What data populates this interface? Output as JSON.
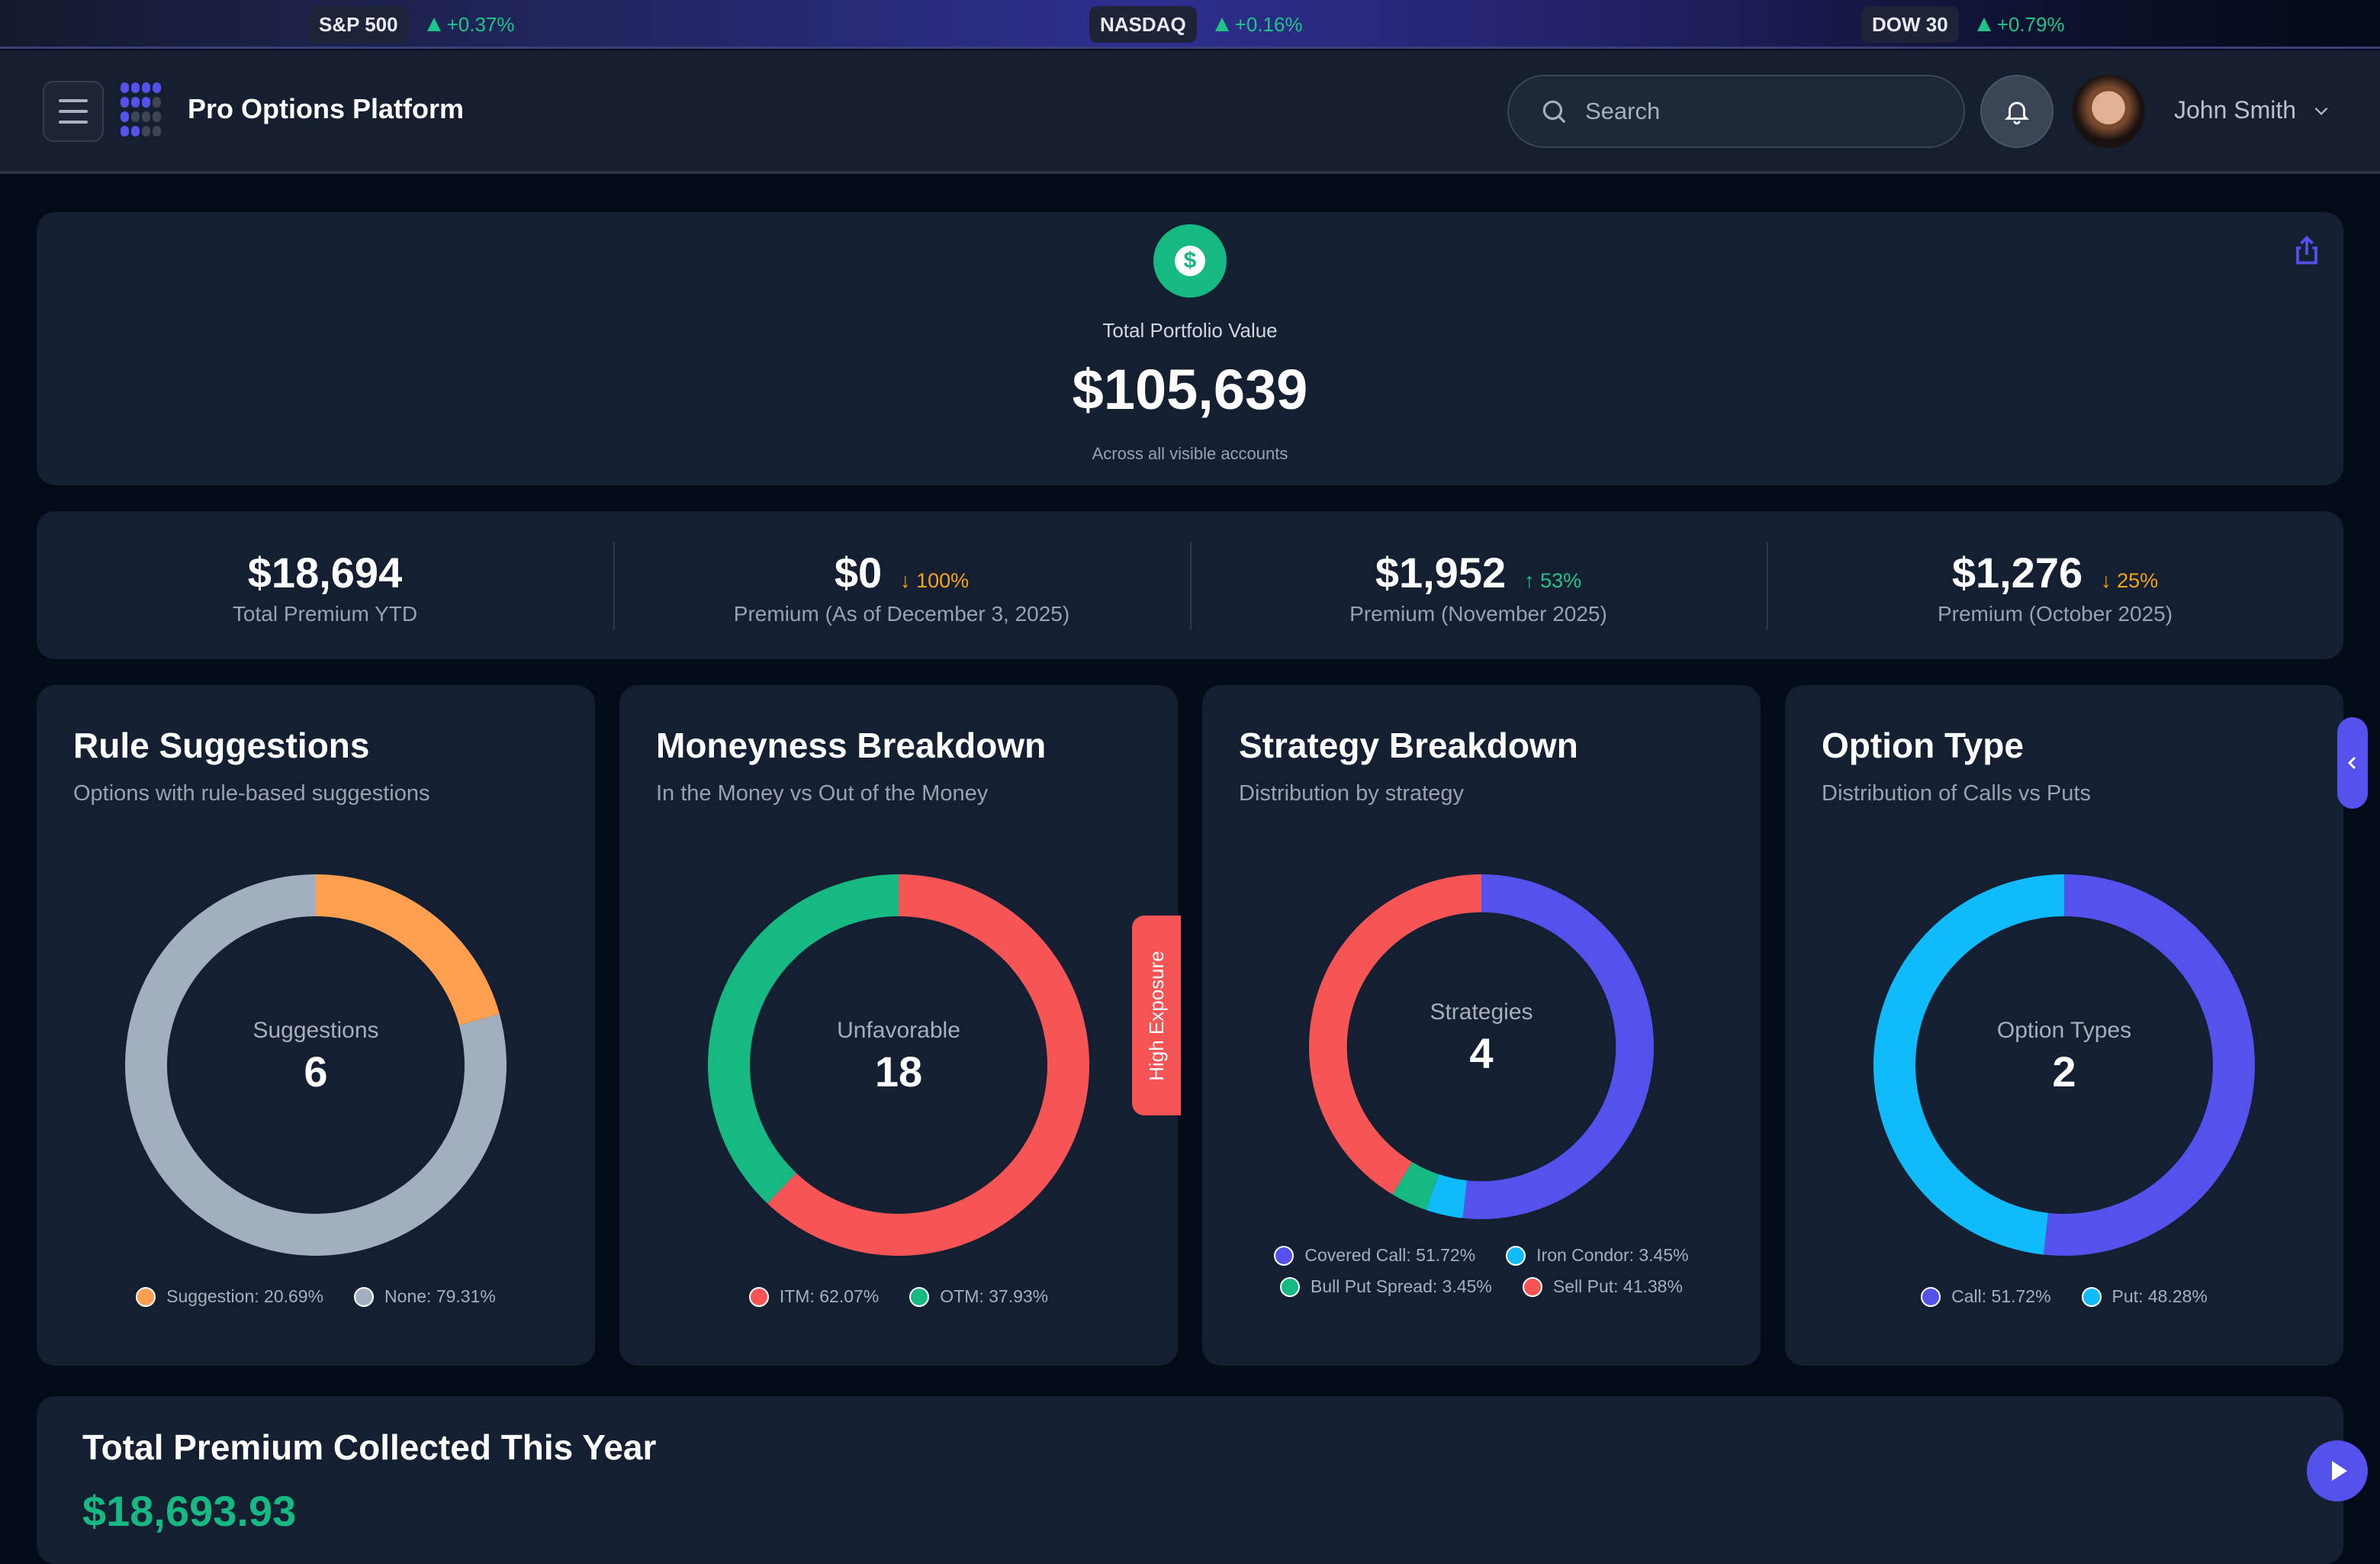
{
  "ticker": [
    {
      "symbol": "S&P 500",
      "change": "+0.37%",
      "direction": "up"
    },
    {
      "symbol": "NASDAQ",
      "change": "+0.16%",
      "direction": "up"
    },
    {
      "symbol": "DOW 30",
      "change": "+0.79%",
      "direction": "up"
    }
  ],
  "header": {
    "app_title": "Pro Options Platform",
    "search_placeholder": "Search",
    "user_name": "John Smith",
    "icons": {
      "menu": "hamburger-icon",
      "search": "search-icon",
      "notifications": "bell-icon",
      "user_menu": "chevron-down-icon"
    }
  },
  "portfolio": {
    "label": "Total Portfolio Value",
    "value": "$105,639",
    "subtitle": "Across all visible accounts",
    "icons": {
      "badge": "dollar-icon",
      "share": "share-icon"
    }
  },
  "stats": [
    {
      "value": "$18,694",
      "delta": "",
      "direction": "",
      "label": "Total Premium YTD"
    },
    {
      "value": "$0",
      "delta": "↓ 100%",
      "direction": "down",
      "label": "Premium (As of December 3, 2025)"
    },
    {
      "value": "$1,952",
      "delta": "↑ 53%",
      "direction": "up",
      "label": "Premium (November 2025)"
    },
    {
      "value": "$1,276",
      "delta": "↓ 25%",
      "direction": "down",
      "label": "Premium (October 2025)"
    }
  ],
  "cards": [
    {
      "title": "Rule Suggestions",
      "subtitle": "Options with rule-based suggestions",
      "center_label": "Suggestions",
      "center_value": "6",
      "legend": [
        "Suggestion: 20.69%",
        "None: 79.31%"
      ]
    },
    {
      "title": "Moneyness Breakdown",
      "subtitle": "In the Money vs Out of the Money",
      "center_label": "Unfavorable",
      "center_value": "18",
      "legend": [
        "ITM: 62.07%",
        "OTM: 37.93%"
      ]
    },
    {
      "title": "Strategy Breakdown",
      "subtitle": "Distribution by strategy",
      "center_label": "Strategies",
      "center_value": "4",
      "legend": [
        "Covered Call: 51.72%",
        "Iron Condor: 3.45%",
        "Bull Put Spread: 3.45%",
        "Sell Put: 41.38%"
      ]
    },
    {
      "title": "Option Type",
      "subtitle": "Distribution of Calls vs Puts",
      "center_label": "Option Types",
      "center_value": "2",
      "legend": [
        "Call: 51.72%",
        "Put: 48.28%"
      ]
    }
  ],
  "exposure_tab": "High Exposure",
  "bottom": {
    "title": "Total Premium Collected This Year",
    "amount": "$18,693.93"
  },
  "colors": {
    "accent": "#5551ec",
    "up": "#1dc58a",
    "down": "#f5a417",
    "orange": "#ff9f4f",
    "gray": "#a2afbe",
    "red": "#f75555",
    "green": "#16b981",
    "cyan": "#0fbcf9",
    "indigo": "#5551ec"
  },
  "chart_data": [
    {
      "type": "pie",
      "title": "Rule Suggestions",
      "categories": [
        "Suggestion",
        "None"
      ],
      "values": [
        20.69,
        79.31
      ],
      "colors": [
        "#ff9f4f",
        "#a2afbe"
      ]
    },
    {
      "type": "pie",
      "title": "Moneyness Breakdown",
      "categories": [
        "ITM",
        "OTM"
      ],
      "values": [
        62.07,
        37.93
      ],
      "colors": [
        "#f75555",
        "#16b981"
      ]
    },
    {
      "type": "pie",
      "title": "Strategy Breakdown",
      "categories": [
        "Covered Call",
        "Iron Condor",
        "Bull Put Spread",
        "Sell Put"
      ],
      "values": [
        51.72,
        3.45,
        3.45,
        41.38
      ],
      "colors": [
        "#5551ec",
        "#0fbcf9",
        "#16b981",
        "#f75555"
      ]
    },
    {
      "type": "pie",
      "title": "Option Type",
      "categories": [
        "Call",
        "Put"
      ],
      "values": [
        51.72,
        48.28
      ],
      "colors": [
        "#5551ec",
        "#0fbcf9"
      ]
    }
  ]
}
